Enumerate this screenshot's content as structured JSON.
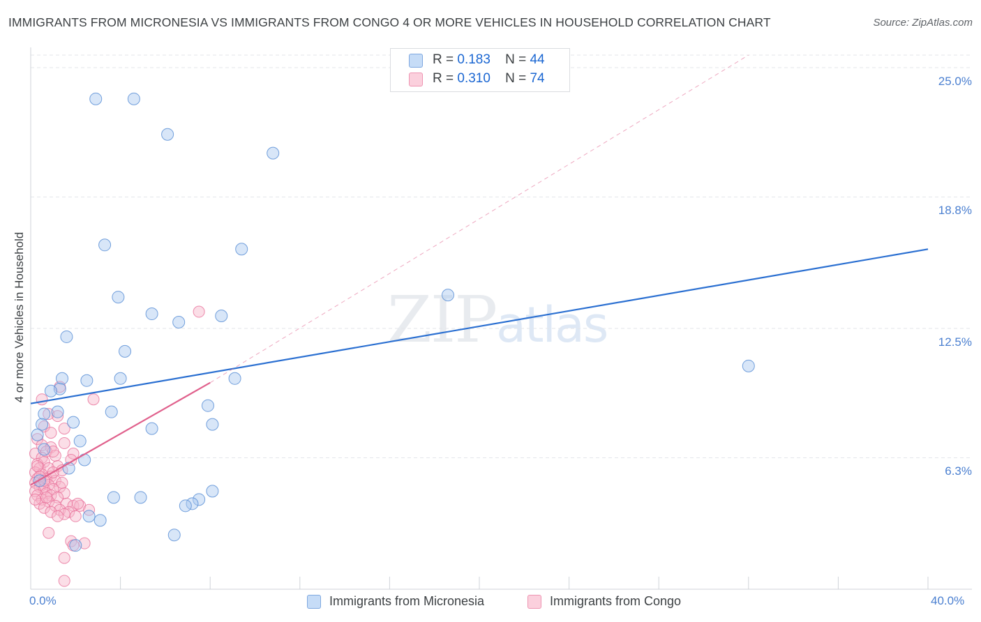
{
  "title": "IMMIGRANTS FROM MICRONESIA VS IMMIGRANTS FROM CONGO 4 OR MORE VEHICLES IN HOUSEHOLD CORRELATION CHART",
  "source": "Source: ZipAtlas.com",
  "watermark": {
    "part1": "ZIP",
    "part2": "atlas"
  },
  "legend": {
    "r_label": "R =",
    "n_label": "N =",
    "rows": [
      {
        "r": "0.183",
        "n": "44",
        "color": "#a9c8f0"
      },
      {
        "r": "0.310",
        "n": "74",
        "color": "#f7b6ca"
      }
    ]
  },
  "colors": {
    "micronesia": "#a9c8f0",
    "micronesia_stroke": "#5b8fd6",
    "micronesia_line": "#2a6fd1",
    "congo": "#f7b6ca",
    "congo_stroke": "#e8709a",
    "congo_line": "#e0608c",
    "tick_text": "#4a7fd0"
  },
  "chart_data": {
    "type": "scatter",
    "title": "IMMIGRANTS FROM MICRONESIA VS IMMIGRANTS FROM CONGO 4 OR MORE VEHICLES IN HOUSEHOLD CORRELATION CHART",
    "xlabel": "",
    "ylabel": "4 or more Vehicles in Household",
    "xlim": [
      0,
      40
    ],
    "ylim": [
      0,
      25.6
    ],
    "x_tick_labels": [
      "0.0%",
      "40.0%"
    ],
    "y_ticks": [
      6.3,
      12.5,
      18.8,
      25.0
    ],
    "y_tick_labels": [
      "6.3%",
      "12.5%",
      "18.8%",
      "25.0%"
    ],
    "grid": true,
    "legend_position": "top-center",
    "series": [
      {
        "name": "Immigrants from Micronesia",
        "points": [
          [
            2.9,
            23.5
          ],
          [
            4.6,
            23.5
          ],
          [
            6.1,
            21.8
          ],
          [
            10.8,
            20.9
          ],
          [
            3.3,
            16.5
          ],
          [
            9.4,
            16.3
          ],
          [
            3.9,
            14.0
          ],
          [
            18.6,
            14.1
          ],
          [
            5.4,
            13.2
          ],
          [
            6.6,
            12.8
          ],
          [
            8.5,
            13.1
          ],
          [
            1.6,
            12.1
          ],
          [
            4.2,
            11.4
          ],
          [
            1.4,
            10.1
          ],
          [
            2.5,
            10.0
          ],
          [
            4.0,
            10.1
          ],
          [
            9.1,
            10.1
          ],
          [
            32.0,
            10.7
          ],
          [
            1.3,
            9.6
          ],
          [
            0.9,
            9.5
          ],
          [
            7.9,
            8.8
          ],
          [
            1.2,
            8.5
          ],
          [
            3.6,
            8.5
          ],
          [
            0.6,
            8.4
          ],
          [
            1.9,
            8.0
          ],
          [
            0.5,
            7.9
          ],
          [
            8.1,
            7.9
          ],
          [
            5.4,
            7.7
          ],
          [
            0.3,
            7.4
          ],
          [
            2.2,
            7.1
          ],
          [
            0.6,
            6.7
          ],
          [
            2.4,
            6.2
          ],
          [
            1.7,
            5.8
          ],
          [
            3.7,
            4.4
          ],
          [
            4.9,
            4.4
          ],
          [
            8.1,
            4.7
          ],
          [
            7.5,
            4.3
          ],
          [
            7.2,
            4.1
          ],
          [
            6.9,
            4.0
          ],
          [
            2.6,
            3.5
          ],
          [
            3.1,
            3.3
          ],
          [
            6.4,
            2.6
          ],
          [
            2.0,
            2.1
          ],
          [
            0.4,
            5.2
          ]
        ]
      },
      {
        "name": "Immigrants from Congo",
        "points": [
          [
            1.3,
            9.7
          ],
          [
            0.5,
            9.1
          ],
          [
            2.8,
            9.1
          ],
          [
            0.8,
            8.4
          ],
          [
            1.2,
            8.3
          ],
          [
            0.6,
            7.8
          ],
          [
            0.9,
            7.5
          ],
          [
            1.5,
            7.7
          ],
          [
            0.3,
            7.2
          ],
          [
            1.5,
            7.0
          ],
          [
            0.5,
            6.9
          ],
          [
            0.9,
            6.8
          ],
          [
            1.9,
            6.5
          ],
          [
            0.7,
            6.6
          ],
          [
            0.2,
            6.5
          ],
          [
            0.5,
            6.3
          ],
          [
            1.1,
            6.4
          ],
          [
            1.8,
            6.2
          ],
          [
            0.3,
            6.0
          ],
          [
            0.6,
            6.1
          ],
          [
            1.2,
            5.9
          ],
          [
            0.4,
            5.8
          ],
          [
            0.8,
            5.8
          ],
          [
            1.4,
            5.7
          ],
          [
            0.2,
            5.6
          ],
          [
            0.5,
            5.5
          ],
          [
            0.9,
            5.4
          ],
          [
            0.3,
            5.3
          ],
          [
            0.7,
            5.3
          ],
          [
            1.1,
            5.2
          ],
          [
            0.2,
            5.1
          ],
          [
            0.5,
            5.0
          ],
          [
            0.8,
            5.0
          ],
          [
            1.3,
            4.9
          ],
          [
            0.4,
            4.9
          ],
          [
            0.6,
            4.8
          ],
          [
            1.0,
            4.8
          ],
          [
            0.2,
            4.7
          ],
          [
            0.7,
            4.6
          ],
          [
            1.5,
            4.6
          ],
          [
            0.3,
            4.5
          ],
          [
            0.9,
            4.5
          ],
          [
            1.2,
            4.4
          ],
          [
            0.5,
            4.3
          ],
          [
            0.8,
            4.2
          ],
          [
            1.6,
            4.1
          ],
          [
            0.4,
            4.1
          ],
          [
            1.1,
            4.0
          ],
          [
            1.9,
            4.0
          ],
          [
            2.2,
            4.0
          ],
          [
            0.6,
            3.9
          ],
          [
            1.3,
            3.8
          ],
          [
            2.6,
            3.8
          ],
          [
            0.9,
            3.7
          ],
          [
            1.7,
            3.7
          ],
          [
            1.5,
            3.6
          ],
          [
            2.0,
            3.5
          ],
          [
            1.2,
            3.5
          ],
          [
            0.8,
            2.7
          ],
          [
            1.8,
            2.3
          ],
          [
            2.4,
            2.2
          ],
          [
            1.9,
            2.1
          ],
          [
            1.5,
            1.5
          ],
          [
            1.5,
            0.4
          ],
          [
            7.5,
            13.3
          ],
          [
            0.4,
            5.4
          ],
          [
            0.6,
            5.2
          ],
          [
            1.0,
            5.6
          ],
          [
            0.3,
            5.9
          ],
          [
            0.7,
            4.4
          ],
          [
            1.4,
            5.1
          ],
          [
            0.2,
            4.3
          ],
          [
            1.0,
            6.6
          ],
          [
            2.1,
            4.1
          ]
        ]
      }
    ],
    "trend_lines": [
      {
        "series": "Immigrants from Micronesia",
        "x": [
          0,
          40
        ],
        "y": [
          8.9,
          16.3
        ],
        "style": "solid"
      },
      {
        "series": "Immigrants from Congo",
        "x": [
          0,
          8
        ],
        "y": [
          5.0,
          9.9
        ],
        "style": "solid"
      },
      {
        "series": "Immigrants from Congo",
        "x": [
          8,
          32
        ],
        "y": [
          9.9,
          25.6
        ],
        "style": "dashed"
      }
    ]
  }
}
